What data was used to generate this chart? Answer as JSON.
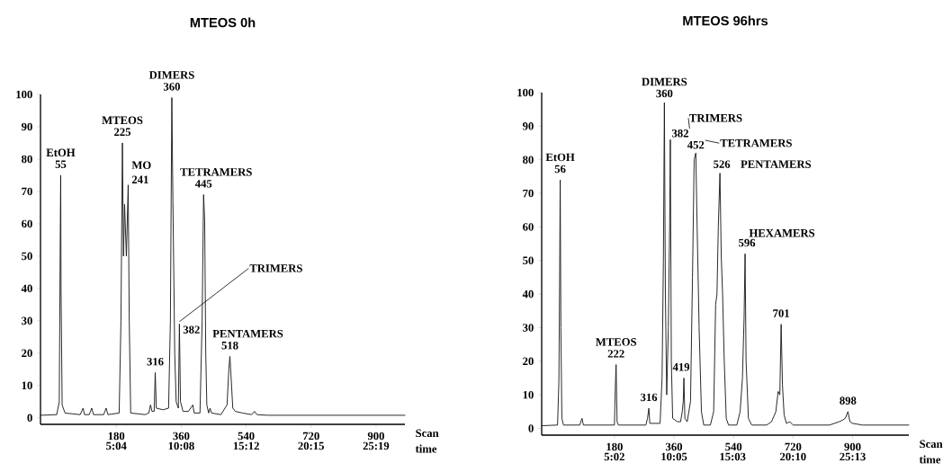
{
  "chart_data": [
    {
      "type": "line",
      "title": "MTEOS 0h",
      "xlabel": "Scan",
      "x2label": "time",
      "color": "#1a1a1a",
      "xlim": [
        -30,
        980
      ],
      "ylim": [
        -2,
        100
      ],
      "xticks": [
        180,
        360,
        540,
        720,
        900
      ],
      "x2lim": [
        -0.84,
        27.57
      ],
      "x2ticks": [
        {
          "value": 5.0667,
          "label": "5:04"
        },
        {
          "value": 10.133,
          "label": "10:08"
        },
        {
          "value": 15.2,
          "label": "15:12"
        },
        {
          "value": 20.25,
          "label": "20:15"
        },
        {
          "value": 25.317,
          "label": "25:19"
        }
      ],
      "yticks": [
        0,
        10,
        20,
        30,
        40,
        50,
        60,
        70,
        80,
        90,
        100
      ],
      "x": [
        -30,
        15,
        22,
        25,
        26,
        27,
        30,
        38,
        80,
        88,
        92,
        105,
        112,
        117,
        145,
        152,
        157,
        188,
        193,
        197,
        200,
        203,
        208,
        213,
        216,
        220,
        260,
        270,
        275,
        279,
        285,
        288,
        291,
        310,
        325,
        330,
        334,
        337,
        342,
        346,
        352,
        355,
        358,
        365,
        380,
        392,
        396,
        412,
        418,
        422,
        425,
        428,
        431,
        436,
        440,
        444,
        470,
        487,
        492,
        495,
        498,
        503,
        510,
        530,
        555,
        563,
        570,
        600,
        980
      ],
      "values": [
        0.8,
        1,
        5,
        60,
        75,
        40,
        4,
        1.5,
        1,
        3,
        1,
        1,
        3,
        1,
        1,
        3,
        1,
        1.5,
        30,
        85,
        50,
        66,
        50,
        72,
        30,
        1.5,
        1,
        1.5,
        4,
        2,
        2,
        14,
        3,
        2.5,
        3,
        30,
        99,
        67,
        20,
        5,
        3,
        29,
        5,
        2,
        2,
        4,
        1.5,
        1.5,
        30,
        69,
        61,
        20,
        4,
        1.5,
        3,
        1.5,
        1,
        4,
        15,
        19,
        13,
        3,
        2,
        1.5,
        1,
        2,
        1,
        0.8,
        0.8
      ],
      "annotations": [
        {
          "text": "EtOH",
          "x": 26,
          "y": 75
        },
        {
          "text": "55",
          "x": 26,
          "y": 75
        },
        {
          "text": "MTEOS",
          "x": 197,
          "y": 85
        },
        {
          "text": "225",
          "x": 197,
          "y": 85
        },
        {
          "text": "MO",
          "x": 213,
          "y": 72
        },
        {
          "text": "241",
          "x": 213,
          "y": 72
        },
        {
          "text": "DIMERS",
          "x": 334,
          "y": 99
        },
        {
          "text": "360",
          "x": 334,
          "y": 99
        },
        {
          "text": "TETRAMERS",
          "x": 422,
          "y": 69
        },
        {
          "text": "445",
          "x": 422,
          "y": 69
        },
        {
          "text": "TRIMERS",
          "x": 355,
          "y": 29
        },
        {
          "text": "382",
          "x": 355,
          "y": 29
        },
        {
          "text": "316",
          "x": 288,
          "y": 14
        },
        {
          "text": "PENTAMERS",
          "x": 495,
          "y": 19
        },
        {
          "text": "518",
          "x": 495,
          "y": 19
        }
      ]
    },
    {
      "type": "line",
      "title": "MTEOS 96hrs",
      "xlabel": "Scan",
      "x2label": "time",
      "color": "#1a1a1a",
      "xlim": [
        -40,
        1070
      ],
      "ylim": [
        -2,
        100
      ],
      "xticks": [
        180,
        360,
        540,
        720,
        900
      ],
      "x2lim": [
        -1.13,
        29.98
      ],
      "x2ticks": [
        {
          "value": 5.0333,
          "label": "5:02"
        },
        {
          "value": 10.083,
          "label": "10:05"
        },
        {
          "value": 15.05,
          "label": "15:03"
        },
        {
          "value": 20.167,
          "label": "20:10"
        },
        {
          "value": 25.217,
          "label": "25:13"
        }
      ],
      "yticks": [
        0,
        10,
        20,
        30,
        40,
        50,
        60,
        70,
        80,
        90,
        100
      ],
      "x": [
        -40,
        8,
        12,
        14,
        16,
        18,
        21,
        26,
        75,
        82,
        86,
        180,
        182,
        185,
        188,
        192,
        275,
        280,
        284,
        287,
        318,
        324,
        328,
        331,
        334,
        338,
        343,
        347,
        349,
        352,
        356,
        370,
        380,
        385,
        388,
        390,
        393,
        400,
        410,
        416,
        421,
        426,
        430,
        436,
        443,
        450,
        470,
        480,
        486,
        490,
        494,
        499,
        503,
        507,
        512,
        518,
        525,
        550,
        560,
        567,
        572,
        575,
        578,
        581,
        585,
        595,
        640,
        655,
        668,
        675,
        680,
        684,
        688,
        693,
        700,
        710,
        720,
        760,
        830,
        860,
        870,
        878,
        886,
        892,
        900,
        930,
        1070
      ],
      "values": [
        0.8,
        1,
        14,
        40,
        74,
        30,
        3,
        1,
        1,
        3,
        1,
        1,
        10,
        19,
        2,
        1,
        1,
        3,
        6,
        1.5,
        1.5,
        15,
        50,
        97,
        40,
        10,
        30,
        61,
        86,
        20,
        3,
        2,
        2,
        5,
        8,
        15,
        3,
        2,
        8,
        45,
        80,
        82,
        60,
        30,
        5,
        1,
        1,
        5,
        37,
        40,
        60,
        76,
        51,
        40,
        20,
        3,
        1,
        1,
        5,
        15,
        33,
        52,
        20,
        13,
        3,
        1,
        1,
        2,
        5,
        11,
        10,
        31,
        13,
        4,
        1.5,
        2,
        1,
        1,
        1,
        2,
        2.5,
        3,
        5,
        2,
        1.5,
        1,
        1
      ],
      "annotations": [
        {
          "text": "EtOH",
          "x": 16,
          "y": 74
        },
        {
          "text": "56",
          "x": 16,
          "y": 74
        },
        {
          "text": "MTEOS",
          "x": 185,
          "y": 19
        },
        {
          "text": "222",
          "x": 185,
          "y": 19
        },
        {
          "text": "316",
          "x": 284,
          "y": 6
        },
        {
          "text": "DIMERS",
          "x": 331,
          "y": 97
        },
        {
          "text": "360",
          "x": 331,
          "y": 97
        },
        {
          "text": "TRIMERS",
          "x": 349,
          "y": 86
        },
        {
          "text": "382",
          "x": 349,
          "y": 86
        },
        {
          "text": "419",
          "x": 390,
          "y": 15
        },
        {
          "text": "TETRAMERS",
          "x": 426,
          "y": 82
        },
        {
          "text": "452",
          "x": 426,
          "y": 82
        },
        {
          "text": "526",
          "x": 499,
          "y": 76
        },
        {
          "text": "PENTAMERS",
          "x": 499,
          "y": 76
        },
        {
          "text": "HEXAMERS",
          "x": 575,
          "y": 52
        },
        {
          "text": "596",
          "x": 575,
          "y": 52
        },
        {
          "text": "701",
          "x": 684,
          "y": 31
        },
        {
          "text": "898",
          "x": 886,
          "y": 5
        }
      ]
    }
  ]
}
